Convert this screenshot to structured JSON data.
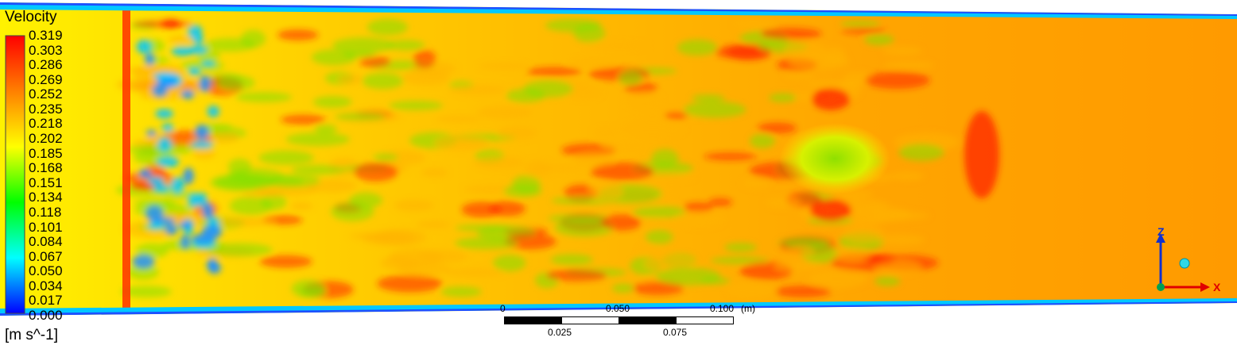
{
  "legend": {
    "title": "Velocity",
    "unit": "[m s^-1]",
    "ticks": [
      "0.319",
      "0.303",
      "0.286",
      "0.269",
      "0.252",
      "0.235",
      "0.218",
      "0.202",
      "0.185",
      "0.168",
      "0.151",
      "0.134",
      "0.118",
      "0.101",
      "0.084",
      "0.067",
      "0.050",
      "0.034",
      "0.017",
      "0.000"
    ],
    "colors": [
      "#ff0000",
      "#ff8000",
      "#ffff00",
      "#00ff00",
      "#00ffff",
      "#0000ff"
    ]
  },
  "scale_bar": {
    "top_labels": [
      "0",
      "0.050",
      "0.100",
      "(m)"
    ],
    "bottom_labels": [
      "0.025",
      "0.075"
    ]
  },
  "axis_triad": {
    "vertical": "Z",
    "horizontal": "X"
  },
  "field_colors": {
    "inlet": "#fff200",
    "mixing": "#ffb300",
    "outflow": "#ff9a00",
    "wall": "#00c8ff",
    "low": "#1e90ff",
    "mid": "#7fe000",
    "high": "#ff2000"
  }
}
